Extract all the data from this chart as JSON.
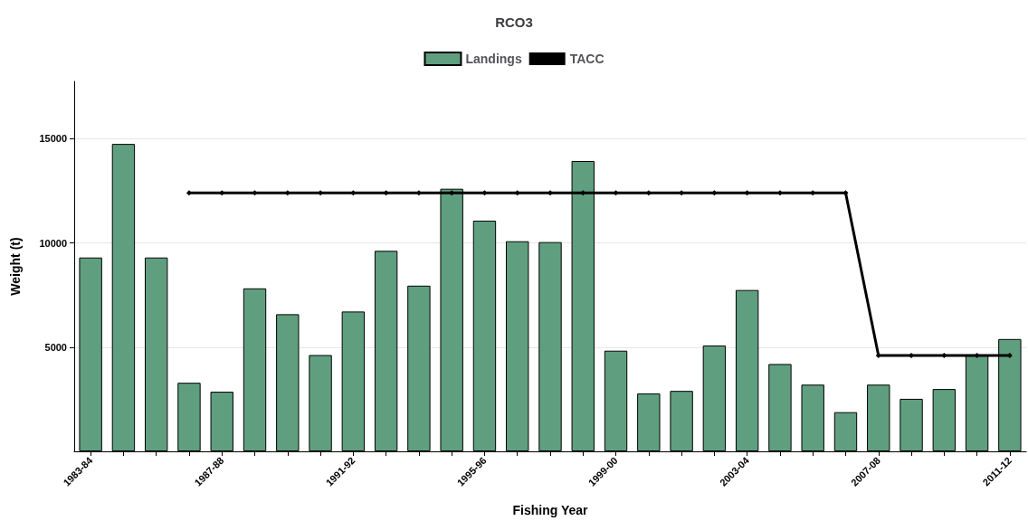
{
  "chart_data": {
    "type": "bar",
    "title": "RCO3",
    "xlabel": "Fishing Year",
    "ylabel": "Weight (t)",
    "categories": [
      "1983-84",
      null,
      null,
      null,
      "1987-88",
      null,
      null,
      null,
      "1991-92",
      null,
      null,
      null,
      "1995-96",
      null,
      null,
      null,
      "1999-00",
      null,
      null,
      null,
      "2003-04",
      null,
      null,
      null,
      "2007-08",
      null,
      null,
      null,
      "2011-12"
    ],
    "series": [
      {
        "name": "Landings",
        "color": "#5f9f7f",
        "values": [
          9300,
          14750,
          9300,
          3290,
          2860,
          7820,
          6580,
          4620,
          6710,
          9620,
          7950,
          12600,
          11070,
          10080,
          10040,
          13930,
          4830,
          2780,
          2900,
          5080,
          7740,
          4190,
          3200,
          1880,
          3200,
          2520,
          2990,
          4620,
          5390
        ]
      },
      {
        "name": "TACC",
        "type": "line",
        "color": "#000000",
        "marker": "diamond",
        "values": [
          null,
          null,
          null,
          12400,
          12400,
          12400,
          12400,
          12400,
          12400,
          12400,
          12400,
          12400,
          12400,
          12400,
          12400,
          12400,
          12400,
          12400,
          12400,
          12400,
          12400,
          12400,
          12400,
          12400,
          4600,
          4600,
          4600,
          4600,
          4600
        ]
      }
    ],
    "ylim": [
      0,
      17750
    ],
    "yticks": [
      5000,
      10000,
      15000
    ],
    "grid": "y",
    "legend": "top"
  }
}
